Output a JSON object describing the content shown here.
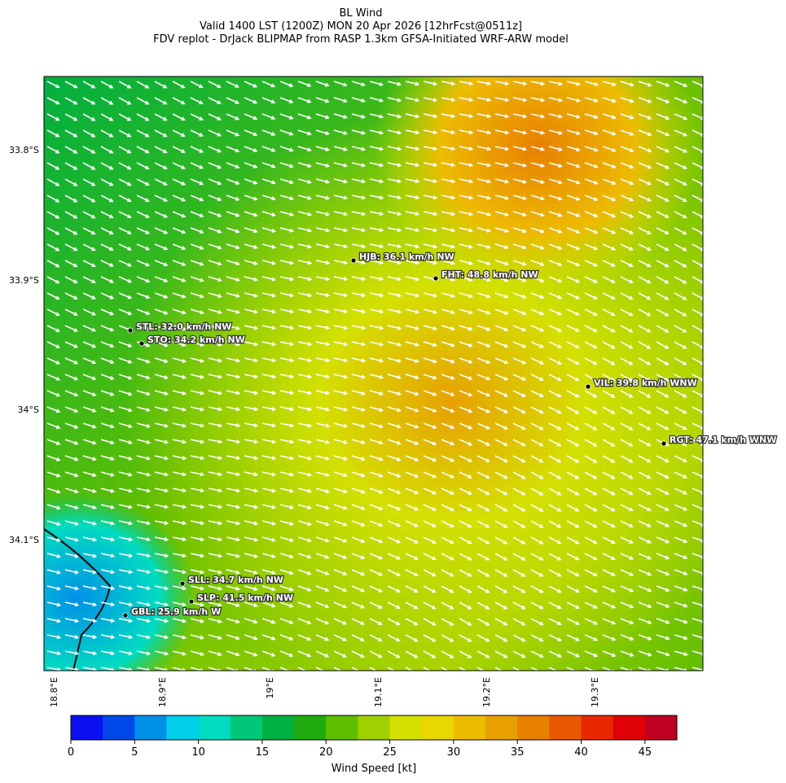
{
  "header": {
    "title": [
      "BL Wind",
      "Valid 1400 LST (1200Z) MON 20 Apr 2026 [12hrFcst@0511z]",
      "FDV replot - DrJack BLIPMAP from RASP 1.3km GFSA-Initiated WRF-ARW model"
    ]
  },
  "map": {
    "lat_labels": [
      "33.8°S",
      "33.9°S",
      "34°S",
      "34.1°S"
    ],
    "lon_labels": [
      "18.8°E",
      "18.9°E",
      "19°E",
      "19.1°E",
      "19.2°E",
      "19.3°E"
    ],
    "stations": [
      "HJB: 36.1 km/h NW",
      "FHT: 48.8 km/h NW",
      "STL: 32.0 km/h NW",
      "STO: 34.2 km/h NW",
      "VIL: 39.8 km/h WNW",
      "RGT: 47.1 km/h WNW",
      "SLL: 34.7 km/h NW",
      "SLP: 41.5 km/h NW",
      "GBL: 25.9 km/h W"
    ]
  },
  "colorbar": {
    "label": "Wind Speed [kt]",
    "xlim": [
      0,
      47.5
    ],
    "xticks": [
      0,
      5,
      10,
      15,
      20,
      25,
      30,
      35,
      40,
      45
    ],
    "colors": [
      "#0a10f0",
      "#0048e8",
      "#0090e8",
      "#00d0e8",
      "#00dcc0",
      "#00c878",
      "#00b040",
      "#20ac10",
      "#60be00",
      "#a0d000",
      "#d4e000",
      "#e8d800",
      "#ecbc00",
      "#e8a000",
      "#e88000",
      "#e85800",
      "#e82800",
      "#e00008",
      "#c00020"
    ]
  }
}
